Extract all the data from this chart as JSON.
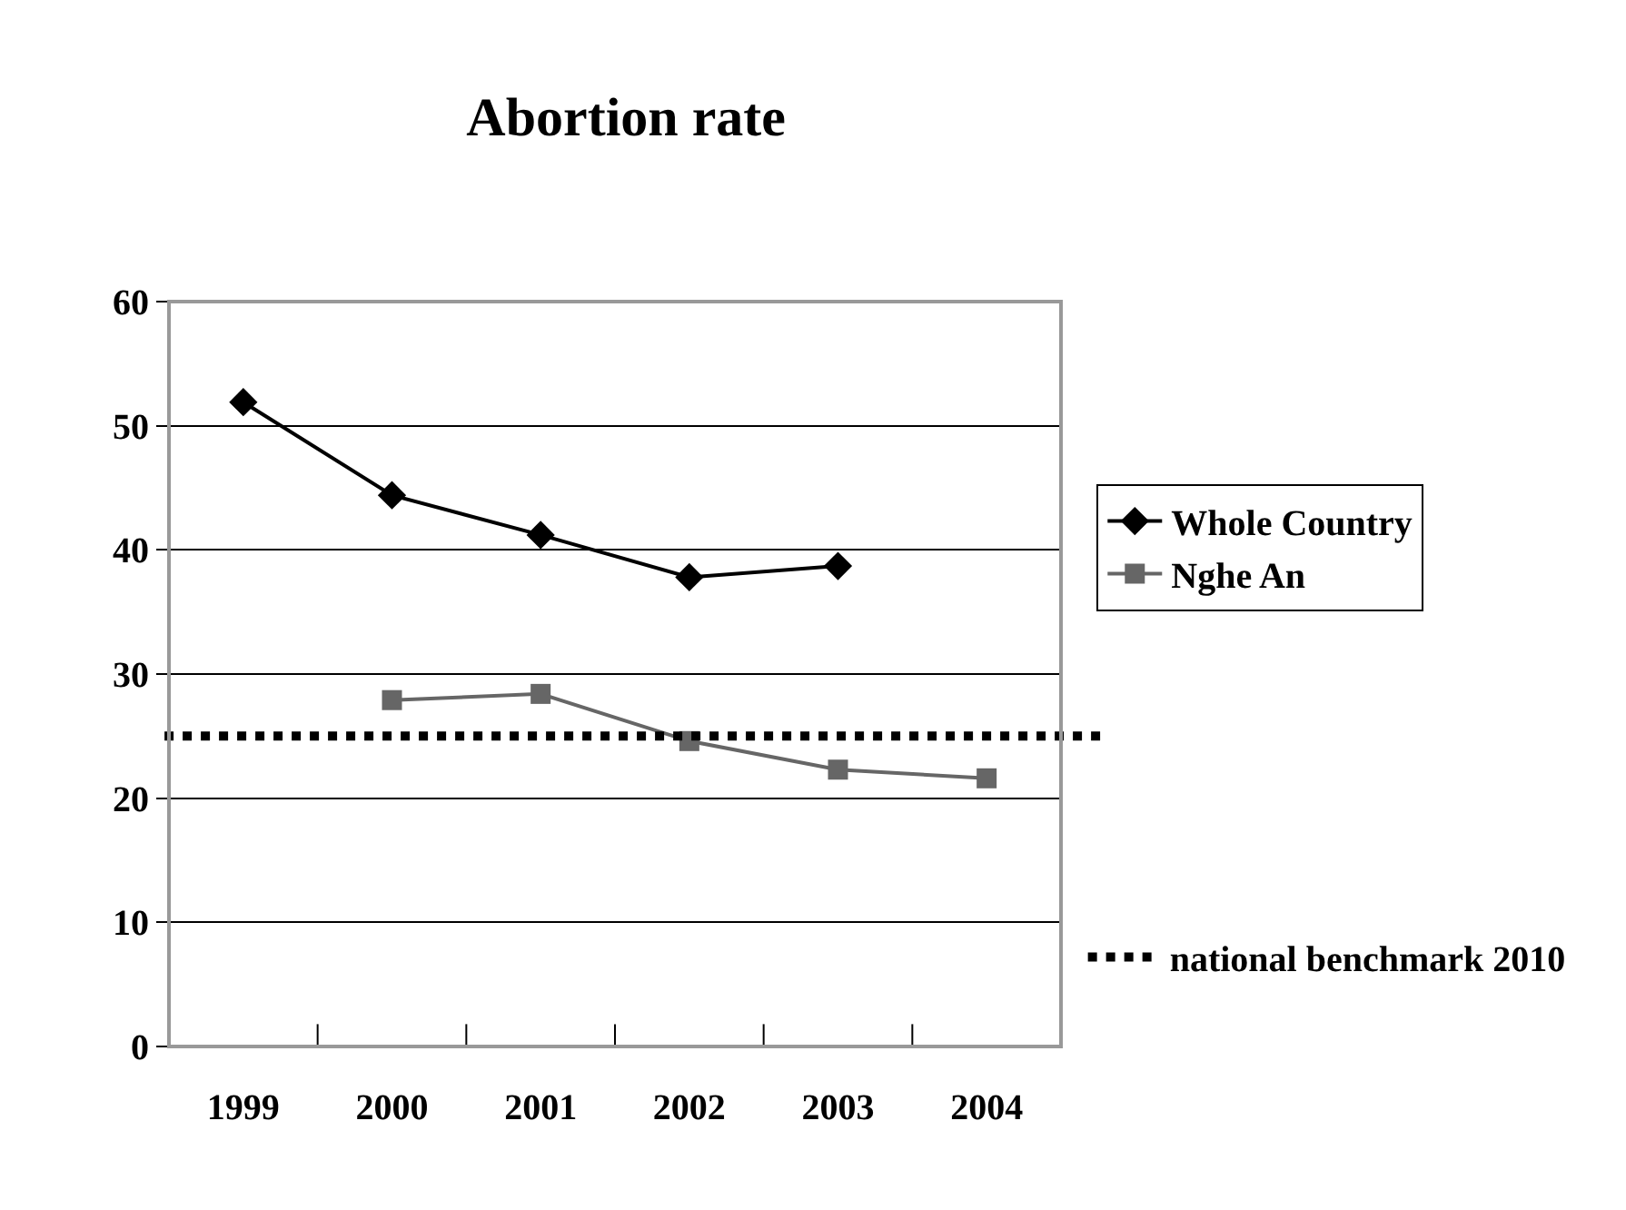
{
  "chart_data": {
    "type": "line",
    "title": "Abortion rate",
    "categories": [
      "1999",
      "2000",
      "2001",
      "2002",
      "2003",
      "2004"
    ],
    "series": [
      {
        "name": "Whole Country",
        "color": "#000000",
        "values": [
          51.9,
          44.4,
          41.2,
          37.8,
          38.7,
          null
        ],
        "marker": "diamond"
      },
      {
        "name": "Nghe An",
        "color": "#666666",
        "values": [
          null,
          27.9,
          28.4,
          24.6,
          22.3,
          21.6
        ],
        "marker": "square"
      }
    ],
    "ylim": [
      0,
      60
    ],
    "yticks": [
      0,
      10,
      20,
      30,
      40,
      50,
      60
    ],
    "grid": "y",
    "legend": "right",
    "line_style": "solid",
    "ref_lines": [
      {
        "axis": "y",
        "value": 25,
        "label": "national benchmark 2010",
        "color": "#000000",
        "line_style": "dotted"
      }
    ]
  }
}
